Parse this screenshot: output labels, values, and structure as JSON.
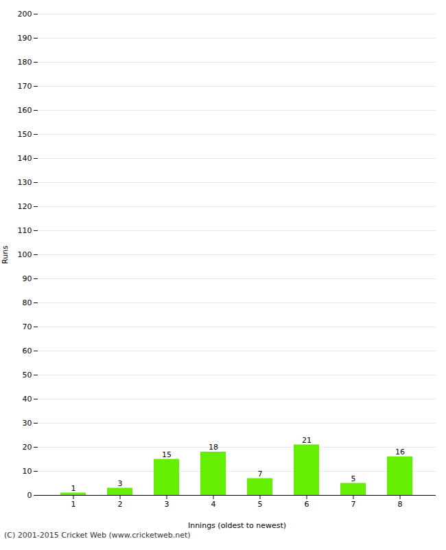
{
  "chart_data": {
    "type": "bar",
    "categories": [
      "1",
      "2",
      "3",
      "4",
      "5",
      "6",
      "7",
      "8"
    ],
    "values": [
      1,
      3,
      15,
      18,
      7,
      21,
      5,
      16
    ],
    "color": "#66ee00",
    "xlabel": "Innings (oldest to newest)",
    "ylabel": "Runs",
    "ylim": [
      0,
      200
    ],
    "yticks": [
      0,
      10,
      20,
      30,
      40,
      50,
      60,
      70,
      80,
      90,
      100,
      110,
      120,
      130,
      140,
      150,
      160,
      170,
      180,
      190,
      200
    ],
    "grid": true,
    "data_labels": true,
    "caption": "(C) 2001-2015 Cricket Web (www.cricketweb.net)"
  }
}
